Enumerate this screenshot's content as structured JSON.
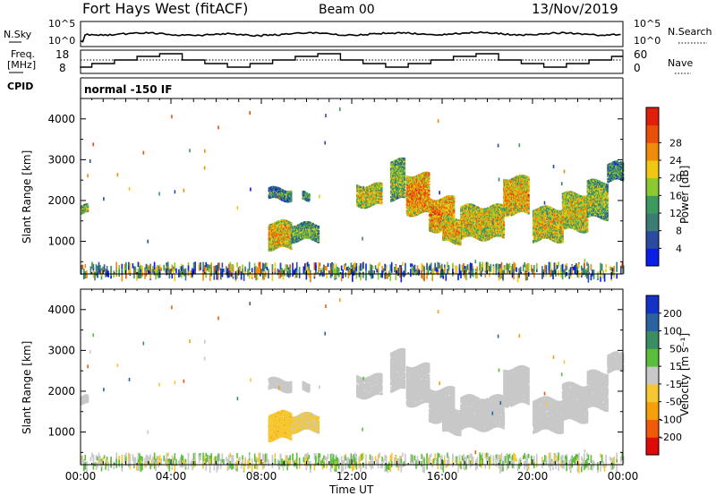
{
  "header": {
    "site_title": "Fort Hays West (fitACF)",
    "beam": "Beam 00",
    "date": "13/Nov/2019"
  },
  "top_panel": {
    "left_label": "N.Sky",
    "right_label": "N.Search",
    "left_ticks": [
      "10^5",
      "10^0"
    ],
    "right_ticks": [
      "10^5",
      "10^0"
    ]
  },
  "freq_panel": {
    "left_label_1": "Freq.",
    "left_label_2": "[MHz]",
    "left_ticks": [
      "18",
      "8"
    ],
    "right_label": "Nave",
    "right_ticks": [
      "60",
      "0"
    ]
  },
  "cpid": {
    "label": "CPID",
    "mode": "normal -150 IF"
  },
  "power_panel": {
    "ylabel": "Slant Range [km]",
    "yticks": [
      "1000",
      "2000",
      "3000",
      "4000"
    ],
    "colorbar_label": "Power [dB]",
    "colorbar_ticks": [
      "4",
      "8",
      "12",
      "16",
      "20",
      "24",
      "28"
    ],
    "colors": [
      "#0a1ee6",
      "#2a4ba0",
      "#3b7d74",
      "#3c9a5e",
      "#8cc832",
      "#f0c814",
      "#f08c0a",
      "#e8500a",
      "#e01e0a"
    ]
  },
  "velocity_panel": {
    "ylabel": "Slant Range [km]",
    "yticks": [
      "1000",
      "2000",
      "3000",
      "4000"
    ],
    "colorbar_label": "Velocity [m s⁻¹]",
    "colorbar_ticks": [
      "-200",
      "-100",
      "-50",
      "-15",
      "15",
      "50",
      "100",
      "200"
    ],
    "colors": [
      "#e00a0a",
      "#f05a0a",
      "#f5a00a",
      "#f5c832",
      "#c8c8c8",
      "#5abe3c",
      "#3c8c64",
      "#2a64a0",
      "#1432c8"
    ]
  },
  "xaxis": {
    "xlabel": "Time UT",
    "ticks": [
      "00:00",
      "04:00",
      "08:00",
      "12:00",
      "16:00",
      "20:00",
      "00:00"
    ]
  },
  "chart_data": {
    "type": "heatmap",
    "title": "Fort Hays West (fitACF)",
    "xlabel": "Time UT",
    "ylabel": "Slant Range [km]",
    "xlim_hours": [
      0,
      24
    ],
    "ylim_km": [
      200,
      4500
    ],
    "power_scale_db": [
      0,
      32
    ],
    "velocity_scale_ms": [
      -250,
      250
    ],
    "scatter_regions": [
      {
        "t_start": 0.0,
        "t_end": 0.3,
        "r_min": 1700,
        "r_max": 1900,
        "power": 16,
        "velocity": 0
      },
      {
        "t_start": 8.3,
        "t_end": 9.3,
        "r_min": 850,
        "r_max": 1500,
        "power": 22,
        "velocity": -40
      },
      {
        "t_start": 9.3,
        "t_end": 10.5,
        "r_min": 1050,
        "r_max": 1450,
        "power": 14,
        "velocity": -20
      },
      {
        "t_start": 8.3,
        "t_end": 9.3,
        "r_min": 2050,
        "r_max": 2300,
        "power": 12,
        "velocity": 0
      },
      {
        "t_start": 9.8,
        "t_end": 10.1,
        "r_min": 2050,
        "r_max": 2250,
        "power": 12,
        "velocity": 0
      },
      {
        "t_start": 12.2,
        "t_end": 13.3,
        "r_min": 1900,
        "r_max": 2400,
        "power": 20,
        "velocity": 0
      },
      {
        "t_start": 13.7,
        "t_end": 14.3,
        "r_min": 2050,
        "r_max": 3000,
        "power": 16,
        "velocity": 0
      },
      {
        "t_start": 14.4,
        "t_end": 15.4,
        "r_min": 1700,
        "r_max": 2650,
        "power": 24,
        "velocity": 0
      },
      {
        "t_start": 15.4,
        "t_end": 16.5,
        "r_min": 1300,
        "r_max": 2100,
        "power": 24,
        "velocity": 0
      },
      {
        "t_start": 16.0,
        "t_end": 16.8,
        "r_min": 1000,
        "r_max": 1600,
        "power": 22,
        "velocity": 0
      },
      {
        "t_start": 16.8,
        "t_end": 18.7,
        "r_min": 1100,
        "r_max": 1900,
        "power": 20,
        "velocity": 0
      },
      {
        "t_start": 18.7,
        "t_end": 19.8,
        "r_min": 1700,
        "r_max": 2600,
        "power": 22,
        "velocity": 0
      },
      {
        "t_start": 20.0,
        "t_end": 21.3,
        "r_min": 1050,
        "r_max": 1850,
        "power": 20,
        "velocity": 0
      },
      {
        "t_start": 21.3,
        "t_end": 22.4,
        "r_min": 1300,
        "r_max": 2200,
        "power": 20,
        "velocity": 0
      },
      {
        "t_start": 22.4,
        "t_end": 23.3,
        "r_min": 1600,
        "r_max": 2500,
        "power": 16,
        "velocity": 0
      },
      {
        "t_start": 23.3,
        "t_end": 24.0,
        "r_min": 2500,
        "r_max": 2950,
        "power": 12,
        "velocity": 0
      }
    ],
    "ground_scatter_band_km": [
      200,
      500
    ]
  }
}
